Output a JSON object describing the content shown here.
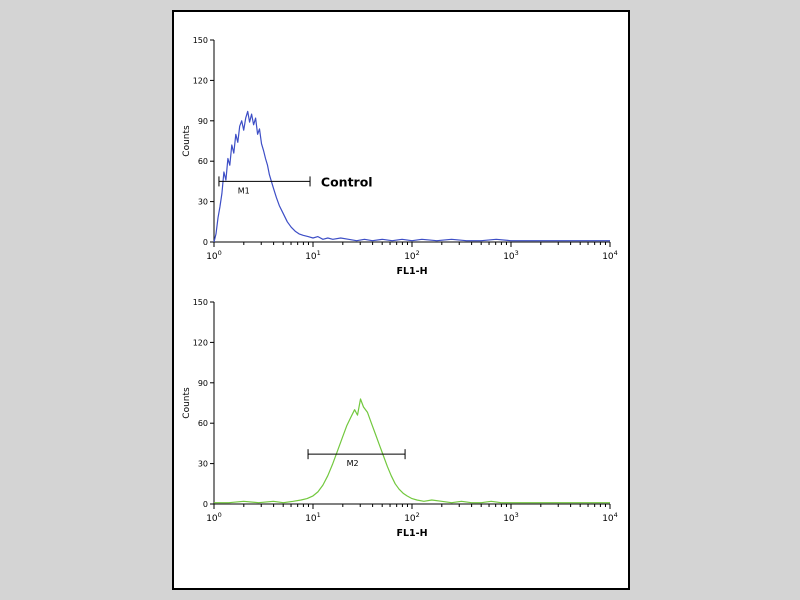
{
  "figure": {
    "background_color": "#d4d4d4",
    "panel_background": "#ffffff",
    "border_color": "#000000"
  },
  "chart_data": [
    {
      "type": "line",
      "title": "",
      "xlabel": "FL1-H",
      "ylabel": "Counts",
      "x_scale": "log10",
      "xlim_log": [
        0,
        4
      ],
      "ylim": [
        0,
        150
      ],
      "y_ticks": [
        0,
        30,
        60,
        90,
        120,
        150
      ],
      "x_tick_base": "10",
      "x_tick_exponents": [
        "0",
        "1",
        "2",
        "3",
        "4"
      ],
      "grid": false,
      "legend": "none",
      "series": [
        {
          "name": "Control histogram",
          "color": "#3d4ec6",
          "points": [
            [
              0.0,
              0
            ],
            [
              0.02,
              6
            ],
            [
              0.04,
              18
            ],
            [
              0.06,
              26
            ],
            [
              0.08,
              36
            ],
            [
              0.1,
              52
            ],
            [
              0.12,
              46
            ],
            [
              0.14,
              62
            ],
            [
              0.16,
              57
            ],
            [
              0.18,
              72
            ],
            [
              0.2,
              66
            ],
            [
              0.22,
              80
            ],
            [
              0.24,
              74
            ],
            [
              0.26,
              86
            ],
            [
              0.28,
              90
            ],
            [
              0.3,
              83
            ],
            [
              0.32,
              92
            ],
            [
              0.34,
              97
            ],
            [
              0.36,
              89
            ],
            [
              0.38,
              95
            ],
            [
              0.4,
              87
            ],
            [
              0.42,
              92
            ],
            [
              0.44,
              80
            ],
            [
              0.46,
              84
            ],
            [
              0.48,
              73
            ],
            [
              0.5,
              68
            ],
            [
              0.52,
              62
            ],
            [
              0.54,
              57
            ],
            [
              0.56,
              50
            ],
            [
              0.58,
              45
            ],
            [
              0.6,
              40
            ],
            [
              0.63,
              33
            ],
            [
              0.66,
              27
            ],
            [
              0.7,
              21
            ],
            [
              0.74,
              15
            ],
            [
              0.78,
              11
            ],
            [
              0.82,
              8
            ],
            [
              0.86,
              6
            ],
            [
              0.9,
              5
            ],
            [
              0.95,
              4
            ],
            [
              1.0,
              3
            ],
            [
              1.05,
              4
            ],
            [
              1.1,
              2
            ],
            [
              1.15,
              3
            ],
            [
              1.2,
              2
            ],
            [
              1.28,
              3
            ],
            [
              1.36,
              2
            ],
            [
              1.44,
              1
            ],
            [
              1.52,
              2
            ],
            [
              1.6,
              1
            ],
            [
              1.7,
              2
            ],
            [
              1.8,
              1
            ],
            [
              1.9,
              2
            ],
            [
              2.0,
              1
            ],
            [
              2.1,
              2
            ],
            [
              2.25,
              1
            ],
            [
              2.4,
              2
            ],
            [
              2.55,
              1
            ],
            [
              2.7,
              1
            ],
            [
              2.85,
              2
            ],
            [
              3.0,
              1
            ],
            [
              3.2,
              1
            ],
            [
              3.4,
              1
            ],
            [
              3.6,
              1
            ],
            [
              3.8,
              1
            ],
            [
              4.0,
              1
            ]
          ]
        }
      ],
      "marker": {
        "label": "M1",
        "y_counts": 45,
        "from_logx": 0.05,
        "to_logx": 0.97,
        "label_logx": 0.3
      },
      "annotation": {
        "text": "Control",
        "logx": 1.08,
        "y_counts": 44
      }
    },
    {
      "type": "line",
      "title": "",
      "xlabel": "FL1-H",
      "ylabel": "Counts",
      "x_scale": "log10",
      "xlim_log": [
        0,
        4
      ],
      "ylim": [
        0,
        150
      ],
      "y_ticks": [
        0,
        30,
        60,
        90,
        120,
        150
      ],
      "x_tick_base": "10",
      "x_tick_exponents": [
        "0",
        "1",
        "2",
        "3",
        "4"
      ],
      "grid": false,
      "legend": "none",
      "series": [
        {
          "name": "Stained histogram",
          "color": "#72c83e",
          "points": [
            [
              0.0,
              1
            ],
            [
              0.15,
              1
            ],
            [
              0.3,
              2
            ],
            [
              0.45,
              1
            ],
            [
              0.6,
              2
            ],
            [
              0.7,
              1
            ],
            [
              0.8,
              2
            ],
            [
              0.88,
              3
            ],
            [
              0.94,
              4
            ],
            [
              1.0,
              6
            ],
            [
              1.05,
              9
            ],
            [
              1.1,
              14
            ],
            [
              1.15,
              21
            ],
            [
              1.2,
              30
            ],
            [
              1.25,
              40
            ],
            [
              1.3,
              50
            ],
            [
              1.34,
              58
            ],
            [
              1.38,
              64
            ],
            [
              1.42,
              70
            ],
            [
              1.45,
              66
            ],
            [
              1.48,
              78
            ],
            [
              1.51,
              72
            ],
            [
              1.55,
              68
            ],
            [
              1.59,
              60
            ],
            [
              1.63,
              52
            ],
            [
              1.67,
              44
            ],
            [
              1.71,
              36
            ],
            [
              1.75,
              28
            ],
            [
              1.79,
              21
            ],
            [
              1.83,
              15
            ],
            [
              1.87,
              11
            ],
            [
              1.91,
              8
            ],
            [
              1.95,
              6
            ],
            [
              2.0,
              4
            ],
            [
              2.05,
              3
            ],
            [
              2.12,
              2
            ],
            [
              2.2,
              3
            ],
            [
              2.3,
              2
            ],
            [
              2.4,
              1
            ],
            [
              2.5,
              2
            ],
            [
              2.6,
              1
            ],
            [
              2.7,
              1
            ],
            [
              2.8,
              2
            ],
            [
              2.9,
              1
            ],
            [
              3.0,
              1
            ],
            [
              3.15,
              1
            ],
            [
              3.3,
              1
            ],
            [
              3.5,
              1
            ],
            [
              3.7,
              1
            ],
            [
              3.85,
              1
            ],
            [
              4.0,
              1
            ]
          ]
        }
      ],
      "marker": {
        "label": "M2",
        "y_counts": 37,
        "from_logx": 0.95,
        "to_logx": 1.93,
        "label_logx": 1.4
      },
      "annotation": null
    }
  ]
}
